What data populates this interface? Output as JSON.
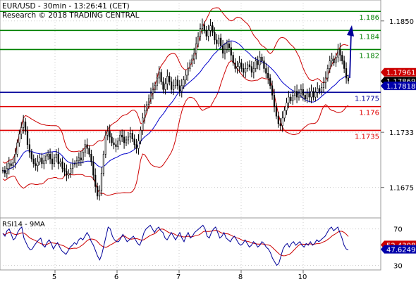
{
  "header": {
    "line1": "EUR/USD - 30min - 13:26:41 (CET)",
    "line2": "Research © 2018 TRADING CENTRAL"
  },
  "colors": {
    "resistance": "#008000",
    "support": "#e00000",
    "pivot": "#000099",
    "price": "#000000",
    "bollinger": "#cc0000",
    "moving_average": "#0000cc",
    "rsi": "#000099",
    "rsi_ma": "#cc0000",
    "forecast_arrow": "#000099"
  },
  "chart_data": [
    {
      "type": "candlestick",
      "title": "EUR/USD - 30min",
      "ylim": [
        1.1643,
        1.1872
      ],
      "y_ticks": [
        "1.1850",
        "1.1733",
        "1.1675"
      ],
      "x_ticks": [
        "5",
        "6",
        "7",
        "8",
        "10"
      ],
      "levels": [
        {
          "name": "resistance",
          "value": 1.186,
          "label": "1.186"
        },
        {
          "name": "resistance",
          "value": 1.184,
          "label": "1.184"
        },
        {
          "name": "resistance",
          "value": 1.182,
          "label": "1.182"
        },
        {
          "name": "pivot",
          "value": 1.1775,
          "label": "1.1775"
        },
        {
          "name": "support",
          "value": 1.176,
          "label": "1.176"
        },
        {
          "name": "support",
          "value": 1.1735,
          "label": "1.1735"
        }
      ],
      "price_tags": [
        {
          "value": 1.17961,
          "label": "1.17961",
          "color": "#cc0000"
        },
        {
          "value": 1.17869,
          "label": "1.17869",
          "color": "#000000"
        },
        {
          "value": 1.17818,
          "label": "1.17818",
          "color": "#0000aa"
        }
      ],
      "price_series": [
        1.1693,
        1.169,
        1.1695,
        1.17,
        1.1698,
        1.1701,
        1.171,
        1.1722,
        1.1731,
        1.1738,
        1.1744,
        1.1734,
        1.172,
        1.1712,
        1.1705,
        1.17,
        1.1698,
        1.1702,
        1.1706,
        1.17,
        1.1703,
        1.1708,
        1.171,
        1.1705,
        1.17,
        1.1706,
        1.171,
        1.17,
        1.1702,
        1.1695,
        1.1692,
        1.1688,
        1.169,
        1.1695,
        1.1699,
        1.17,
        1.1703,
        1.1706,
        1.1704,
        1.1712,
        1.172,
        1.1716,
        1.171,
        1.1702,
        1.1688,
        1.1676,
        1.1666,
        1.1672,
        1.169,
        1.171,
        1.173,
        1.1734,
        1.1728,
        1.1722,
        1.172,
        1.1718,
        1.1724,
        1.173,
        1.1728,
        1.1722,
        1.1725,
        1.1728,
        1.1732,
        1.1726,
        1.172,
        1.1716,
        1.1724,
        1.1735,
        1.1748,
        1.1756,
        1.1762,
        1.1768,
        1.1774,
        1.1778,
        1.1782,
        1.179,
        1.1796,
        1.1786,
        1.1778,
        1.1784,
        1.1792,
        1.1786,
        1.1778,
        1.1782,
        1.1788,
        1.1782,
        1.1776,
        1.1782,
        1.1788,
        1.1793,
        1.18,
        1.1806,
        1.181,
        1.1816,
        1.1826,
        1.1834,
        1.1842,
        1.1846,
        1.184,
        1.1834,
        1.184,
        1.1845,
        1.1838,
        1.183,
        1.1826,
        1.1832,
        1.1824,
        1.1816,
        1.182,
        1.1826,
        1.1822,
        1.1814,
        1.1806,
        1.18,
        1.1802,
        1.1806,
        1.18,
        1.1796,
        1.18,
        1.1804,
        1.1802,
        1.1796,
        1.18,
        1.1808,
        1.1804,
        1.1812,
        1.1808,
        1.18,
        1.1795,
        1.179,
        1.1782,
        1.1772,
        1.176,
        1.175,
        1.1742,
        1.174,
        1.1748,
        1.1756,
        1.1764,
        1.177,
        1.1766,
        1.1772,
        1.1776,
        1.177,
        1.1774,
        1.1778,
        1.1772,
        1.1768,
        1.1774,
        1.177,
        1.1776,
        1.177,
        1.1775,
        1.1779,
        1.1776,
        1.178,
        1.1785,
        1.179,
        1.18,
        1.1808,
        1.181,
        1.1806,
        1.1812,
        1.182,
        1.1814,
        1.1808,
        1.18,
        1.179,
        1.1787
      ]
    },
    {
      "type": "line",
      "title": "RSI14 - 9MA",
      "ylim": [
        25,
        82
      ],
      "y_ticks": [
        "70",
        "30"
      ],
      "series_tags": [
        {
          "value": 52.4308,
          "label": "52.4308",
          "color": "#cc0000"
        },
        {
          "value": 47.6249,
          "label": "47.6249",
          "color": "#0000aa"
        }
      ],
      "rsi_series": [
        65,
        62,
        68,
        70,
        64,
        58,
        60,
        66,
        70,
        72,
        60,
        55,
        50,
        47,
        48,
        52,
        55,
        58,
        60,
        52,
        50,
        55,
        58,
        54,
        48,
        52,
        55,
        50,
        46,
        44,
        42,
        46,
        50,
        52,
        55,
        53,
        58,
        60,
        58,
        62,
        66,
        62,
        56,
        52,
        46,
        40,
        36,
        42,
        52,
        62,
        72,
        70,
        62,
        58,
        56,
        56,
        60,
        64,
        60,
        56,
        58,
        60,
        62,
        58,
        54,
        52,
        58,
        66,
        70,
        72,
        74,
        70,
        66,
        70,
        72,
        68,
        66,
        60,
        58,
        62,
        66,
        62,
        58,
        62,
        66,
        60,
        56,
        62,
        66,
        60,
        62,
        66,
        68,
        70,
        72,
        74,
        70,
        62,
        60,
        66,
        70,
        72,
        66,
        60,
        62,
        66,
        60,
        58,
        56,
        60,
        62,
        58,
        54,
        52,
        54,
        58,
        54,
        50,
        52,
        56,
        54,
        50,
        52,
        56,
        54,
        50,
        48,
        44,
        38,
        34,
        30,
        32,
        40,
        48,
        52,
        54,
        50,
        54,
        56,
        52,
        54,
        56,
        52,
        50,
        54,
        52,
        56,
        52,
        54,
        58,
        56,
        58,
        60,
        62,
        66,
        70,
        72,
        68,
        70,
        72,
        66,
        60,
        52,
        48,
        47
      ]
    }
  ]
}
